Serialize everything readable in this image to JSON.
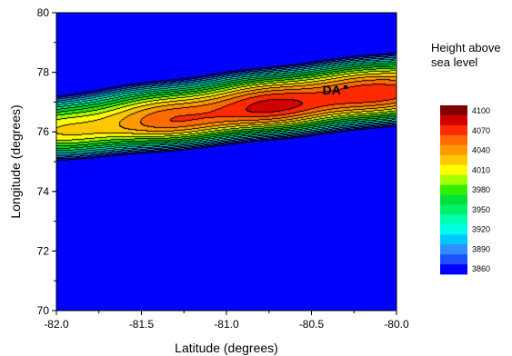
{
  "chart_data": {
    "type": "contour",
    "xlabel": "Latitude (degrees)",
    "ylabel": "Longitude (degrees)",
    "xlim": [
      -82.0,
      -80.0
    ],
    "ylim": [
      70,
      80
    ],
    "x_ticks": [
      "-82.0",
      "-81.5",
      "-81.0",
      "-80.5",
      "-80.0"
    ],
    "y_ticks": [
      "70",
      "72",
      "74",
      "76",
      "78",
      "80"
    ],
    "legend": {
      "title_lines": [
        "Height above",
        "sea level"
      ],
      "placement": "right",
      "labels": [
        "4100",
        "4070",
        "4040",
        "4010",
        "3980",
        "3950",
        "3920",
        "3890",
        "3860"
      ],
      "levels": [
        3860,
        3875,
        3890,
        3905,
        3920,
        3935,
        3950,
        3965,
        3980,
        3995,
        4010,
        4025,
        4040,
        4055,
        4070,
        4085,
        4100
      ],
      "colors": [
        "#0000ff",
        "#1e50ff",
        "#2f8dff",
        "#00c8ff",
        "#00ffe6",
        "#00ffb0",
        "#00f06a",
        "#00e23a",
        "#33ee00",
        "#a6ff00",
        "#ffff00",
        "#ffc800",
        "#ff9a00",
        "#ff6a00",
        "#ff2a00",
        "#d00000",
        "#800000"
      ]
    },
    "annotation": {
      "text": "DA",
      "x": -80.3,
      "y": 77.5
    },
    "peak": {
      "x": -80.45,
      "y": 77.0,
      "value": 4085
    }
  }
}
